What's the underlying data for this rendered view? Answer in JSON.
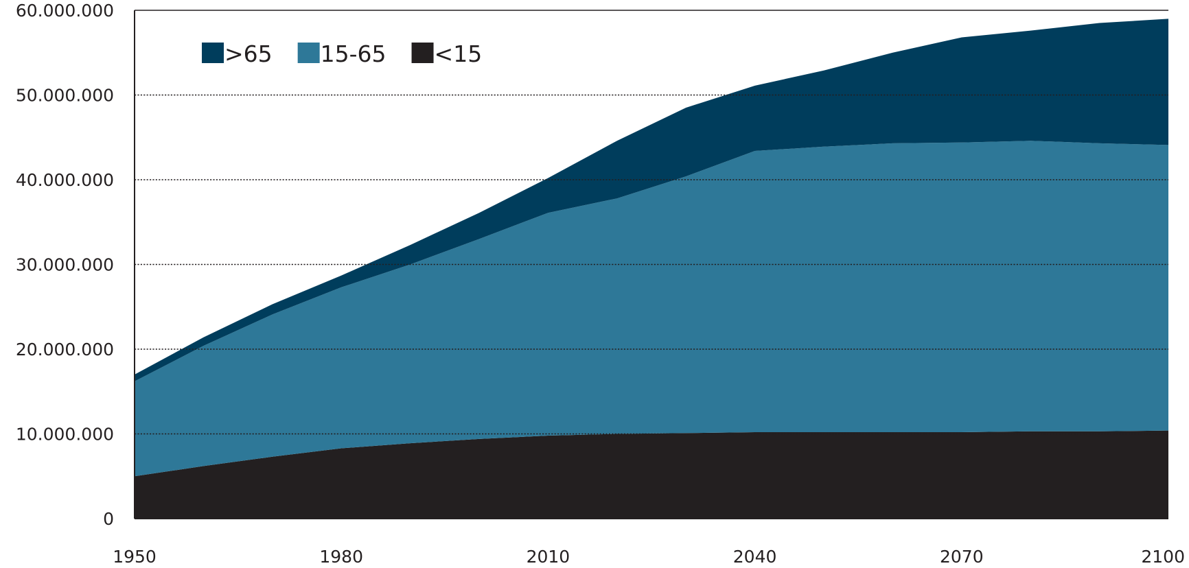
{
  "chart_data": {
    "type": "area",
    "stacked": true,
    "x": [
      1950,
      1960,
      1970,
      1980,
      1990,
      2000,
      2010,
      2020,
      2030,
      2040,
      2050,
      2060,
      2070,
      2080,
      2090,
      2100
    ],
    "series": [
      {
        "name": "<15",
        "color": "#231f20",
        "values": [
          5000000,
          6200000,
          7300000,
          8300000,
          8900000,
          9400000,
          9800000,
          10000000,
          10100000,
          10200000,
          10200000,
          10200000,
          10200000,
          10300000,
          10300000,
          10400000
        ]
      },
      {
        "name": "15-65",
        "color": "#2e7898",
        "values": [
          11200000,
          14200000,
          16800000,
          19000000,
          21100000,
          23600000,
          26300000,
          27800000,
          30300000,
          33200000,
          33700000,
          34100000,
          34200000,
          34300000,
          34000000,
          33700000
        ]
      },
      {
        "name": ">65",
        "color": "#003d5c",
        "values": [
          800000,
          1000000,
          1200000,
          1400000,
          2300000,
          3100000,
          4100000,
          6800000,
          8100000,
          7700000,
          9000000,
          10700000,
          12400000,
          13000000,
          14200000,
          14900000
        ]
      }
    ],
    "x_ticks": [
      "1950",
      "1980",
      "2010",
      "2040",
      "2070",
      "2100"
    ],
    "y_ticks": [
      "0",
      "10.000.000",
      "20.000.000",
      "30.000.000",
      "40.000.000",
      "50.000.000",
      "60.000.000"
    ],
    "xlim": [
      1950,
      2100
    ],
    "ylim": [
      0,
      60000000
    ],
    "grid": "horizontal-dotted",
    "legend": {
      "placement": "top-left",
      "order": [
        ">65",
        "15-65",
        "<15"
      ]
    }
  }
}
